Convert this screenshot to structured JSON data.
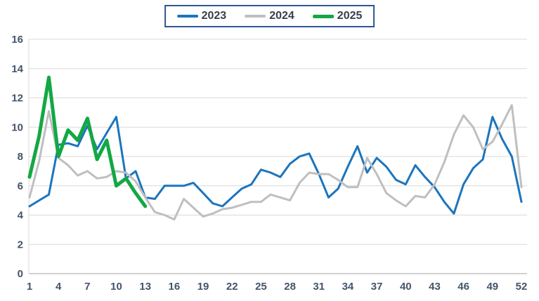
{
  "legend": {
    "position": "top-center",
    "items_from_series": true
  },
  "colors": {
    "background": "#ffffff",
    "axis_label_text": "#44546A",
    "legend_text": "#363E4F",
    "legend_border": "#2F5496",
    "gridline": "#D9D9D9",
    "baseline": "#A6A6A6",
    "series_2023": "#1B75BE",
    "series_2024": "#BFBFBF",
    "series_2025": "#12A843"
  },
  "chart_data": {
    "type": "line",
    "title": "",
    "xlabel": "",
    "ylabel": "",
    "x_range": [
      1,
      52
    ],
    "ylim": [
      0,
      16
    ],
    "y_ticks": [
      0,
      2,
      4,
      6,
      8,
      10,
      12,
      14,
      16
    ],
    "x_ticks": [
      1,
      4,
      7,
      10,
      13,
      16,
      19,
      22,
      25,
      28,
      31,
      34,
      37,
      40,
      43,
      46,
      49,
      52
    ],
    "grid": "horizontal",
    "legend_position": "top-center",
    "series": [
      {
        "name": "2023",
        "color": "#1B75BE",
        "stroke_width": 3,
        "x_start": 1,
        "values": [
          4.6,
          5.0,
          5.4,
          8.8,
          8.9,
          8.7,
          10.1,
          8.5,
          9.6,
          10.7,
          6.5,
          7.0,
          5.2,
          5.1,
          6.0,
          6.0,
          6.0,
          6.2,
          5.5,
          4.8,
          4.6,
          5.2,
          5.8,
          6.1,
          7.1,
          6.9,
          6.6,
          7.5,
          8.0,
          8.2,
          6.8,
          5.2,
          5.8,
          7.3,
          8.7,
          6.9,
          7.9,
          7.3,
          6.4,
          6.1,
          7.4,
          6.6,
          5.9,
          4.9,
          4.1,
          6.1,
          7.2,
          7.8,
          10.7,
          9.2,
          8.0,
          4.9
        ]
      },
      {
        "name": "2024",
        "color": "#BFBFBF",
        "stroke_width": 3,
        "x_start": 1,
        "values": [
          5.2,
          7.7,
          11.1,
          7.9,
          7.4,
          6.7,
          7.0,
          6.5,
          6.6,
          7.0,
          6.9,
          6.3,
          5.2,
          4.2,
          4.0,
          3.7,
          5.1,
          4.5,
          3.9,
          4.1,
          4.4,
          4.5,
          4.7,
          4.9,
          4.9,
          5.4,
          5.2,
          5.0,
          6.2,
          6.9,
          6.8,
          6.8,
          6.4,
          5.9,
          5.9,
          7.9,
          6.8,
          5.5,
          5.0,
          4.6,
          5.3,
          5.2,
          6.1,
          7.6,
          9.5,
          10.8,
          10.0,
          8.5,
          9.0,
          10.2,
          11.5,
          5.9
        ]
      },
      {
        "name": "2025",
        "color": "#12A843",
        "stroke_width": 5,
        "x_start": 1,
        "values": [
          6.6,
          9.4,
          13.4,
          8.0,
          9.8,
          9.1,
          10.6,
          7.8,
          9.1,
          6.0,
          6.5,
          5.5,
          4.6
        ]
      }
    ]
  }
}
